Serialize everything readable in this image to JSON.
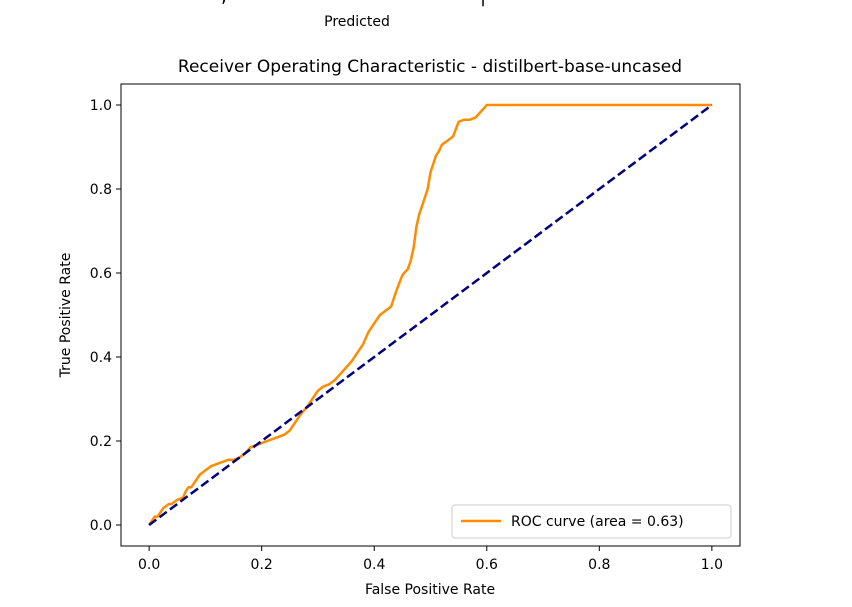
{
  "header": {
    "prev_axis_label": "Predicted"
  },
  "colors": {
    "roc_curve": "#ff8c00",
    "diagonal": "#000080",
    "axes": "#000000",
    "background": "#ffffff"
  },
  "chart_data": {
    "type": "line",
    "title": "Receiver Operating Characteristic - distilbert-base-uncased",
    "xlabel": "False Positive Rate",
    "ylabel": "True Positive Rate",
    "xlim": [
      -0.05,
      1.05
    ],
    "ylim": [
      -0.05,
      1.05
    ],
    "x_ticks": [
      0.0,
      0.2,
      0.4,
      0.6,
      0.8,
      1.0
    ],
    "y_ticks": [
      0.0,
      0.2,
      0.4,
      0.6,
      0.8,
      1.0
    ],
    "x_tick_labels": [
      "0.0",
      "0.2",
      "0.4",
      "0.6",
      "0.8",
      "1.0"
    ],
    "y_tick_labels": [
      "0.0",
      "0.2",
      "0.4",
      "0.6",
      "0.8",
      "1.0"
    ],
    "grid": false,
    "legend_position": "lower-right",
    "series": [
      {
        "name": "ROC curve (area = 0.63)",
        "color": "#ff8c00",
        "style": "solid",
        "x": [
          0.0,
          0.005,
          0.01,
          0.015,
          0.02,
          0.025,
          0.03,
          0.035,
          0.04,
          0.05,
          0.06,
          0.065,
          0.07,
          0.075,
          0.08,
          0.085,
          0.09,
          0.1,
          0.11,
          0.12,
          0.13,
          0.14,
          0.15,
          0.16,
          0.17,
          0.18,
          0.19,
          0.2,
          0.21,
          0.22,
          0.23,
          0.24,
          0.25,
          0.26,
          0.27,
          0.28,
          0.29,
          0.3,
          0.31,
          0.32,
          0.33,
          0.34,
          0.35,
          0.36,
          0.37,
          0.38,
          0.39,
          0.4,
          0.41,
          0.42,
          0.43,
          0.44,
          0.45,
          0.46,
          0.465,
          0.47,
          0.475,
          0.48,
          0.485,
          0.49,
          0.495,
          0.5,
          0.505,
          0.51,
          0.515,
          0.52,
          0.53,
          0.54,
          0.55,
          0.56,
          0.57,
          0.58,
          0.59,
          0.6,
          0.7,
          0.8,
          0.9,
          1.0
        ],
        "y": [
          0.0,
          0.01,
          0.02,
          0.02,
          0.03,
          0.04,
          0.045,
          0.05,
          0.05,
          0.06,
          0.065,
          0.08,
          0.09,
          0.09,
          0.1,
          0.11,
          0.12,
          0.13,
          0.14,
          0.145,
          0.15,
          0.155,
          0.155,
          0.16,
          0.17,
          0.185,
          0.19,
          0.195,
          0.2,
          0.205,
          0.21,
          0.215,
          0.225,
          0.245,
          0.265,
          0.28,
          0.3,
          0.32,
          0.33,
          0.335,
          0.345,
          0.36,
          0.375,
          0.39,
          0.41,
          0.43,
          0.46,
          0.48,
          0.5,
          0.51,
          0.52,
          0.56,
          0.595,
          0.61,
          0.63,
          0.66,
          0.71,
          0.74,
          0.76,
          0.78,
          0.8,
          0.84,
          0.86,
          0.88,
          0.89,
          0.905,
          0.915,
          0.925,
          0.96,
          0.965,
          0.965,
          0.97,
          0.985,
          1.0,
          1.0,
          1.0,
          1.0,
          1.0
        ]
      },
      {
        "name": "",
        "color": "#000080",
        "style": "dashed",
        "x": [
          0.0,
          1.0
        ],
        "y": [
          0.0,
          1.0
        ]
      }
    ]
  }
}
